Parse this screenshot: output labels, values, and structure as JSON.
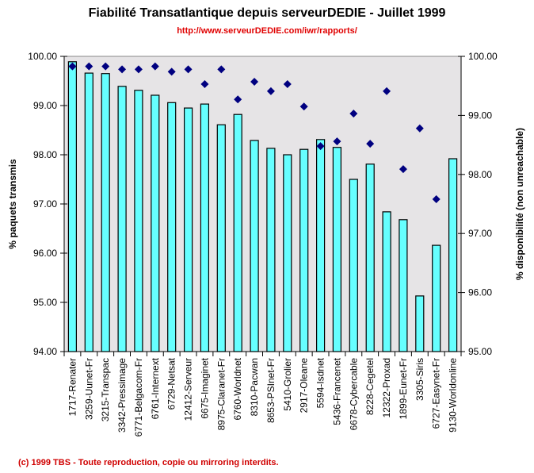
{
  "chart_data": {
    "type": "bar",
    "title": "Fiabilité Transatlantique depuis serveurDEDIE - Juillet 1999",
    "subtitle": "http://www.serveurDEDIE.com/iwr/rapports/",
    "footer": "(c) 1999 TBS - Toute reproduction, copie ou mirroring interdits.",
    "ylabel": "%  paquets transmis",
    "y2label": "% disponibilité (non unreachable)",
    "ylim": [
      94,
      100
    ],
    "y2lim": [
      95,
      100
    ],
    "yticks": [
      "94.00",
      "95.00",
      "96.00",
      "97.00",
      "98.00",
      "99.00",
      "100.00"
    ],
    "y2ticks": [
      "95.00",
      "96.00",
      "97.00",
      "98.00",
      "99.00",
      "100.00"
    ],
    "grid": false,
    "colors": {
      "bars": "#66ffff",
      "markers": "#000080",
      "plot_bg": "#e6e4e6"
    },
    "categories": [
      "1717-Renater",
      "3259-Uunet-Fr",
      "3215-Transpac",
      "3342-Pressimage",
      "6771-Belgacom-Fr",
      "6761-Internext",
      "6729-Netsat",
      "12412-Serveur",
      "6675-Imaginet",
      "8975-Claranet-Fr",
      "6760-Worldnet",
      "8310-Pacwan",
      "8653-PSInet-Fr",
      "5410-Grolier",
      "2917-Oleane",
      "5594-Isdnet",
      "5436-Francenet",
      "6678-Cybercable",
      "8228-Cegetel",
      "12322-Proxad",
      "1899-Eunet-Fr",
      "3305-Siris",
      "6727-Easynet-Fr",
      "9130-Worldonline"
    ],
    "series": [
      {
        "name": "% paquets transmis",
        "type": "bar",
        "axis": "left",
        "values": [
          99.89,
          99.66,
          99.65,
          99.39,
          99.31,
          99.21,
          99.06,
          98.95,
          99.03,
          98.61,
          98.82,
          98.29,
          98.13,
          98.0,
          98.11,
          98.31,
          98.15,
          97.5,
          97.81,
          96.84,
          96.68,
          95.13,
          96.16,
          97.92
        ]
      },
      {
        "name": "% disponibilité (non unreachable)",
        "type": "scatter",
        "axis": "right",
        "values": [
          99.83,
          99.83,
          99.83,
          99.78,
          99.78,
          99.83,
          99.74,
          99.78,
          99.53,
          99.78,
          99.27,
          99.57,
          99.41,
          99.53,
          99.15,
          98.48,
          98.56,
          99.03,
          98.52,
          99.41,
          98.09,
          98.78,
          97.58,
          null
        ]
      }
    ]
  }
}
